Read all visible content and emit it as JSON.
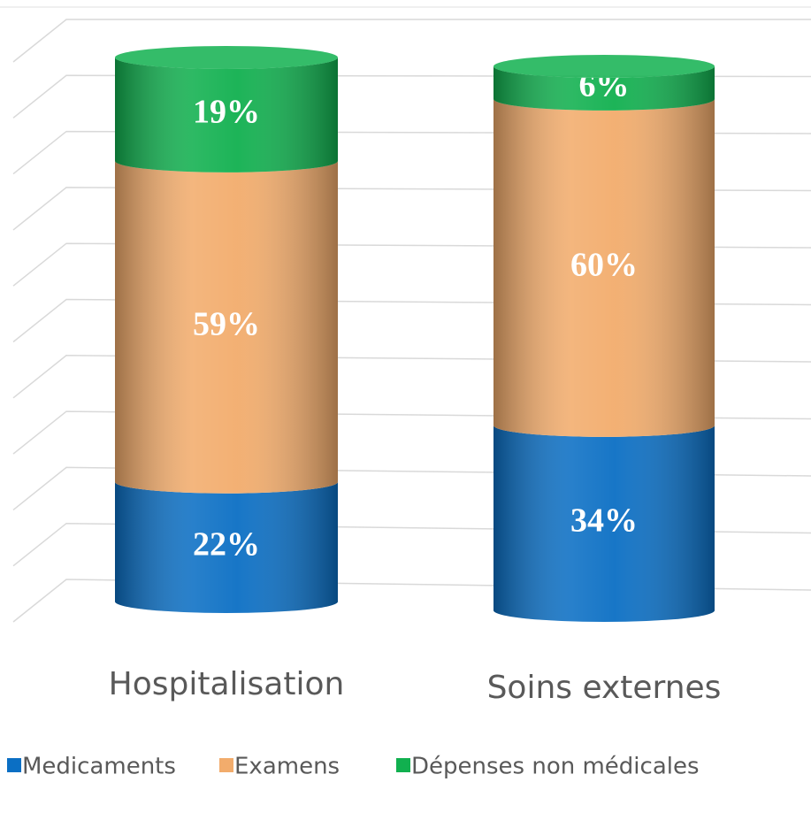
{
  "chart_data": {
    "type": "bar3d-stacked",
    "categories": [
      "Hospitalisation",
      "Soins externes"
    ],
    "series": [
      {
        "name": "Medicaments",
        "color": "#0b6fc4",
        "values": [
          22,
          34
        ],
        "value_labels": [
          "22%",
          "34%"
        ]
      },
      {
        "name": "Examens",
        "color": "#f2ac6c",
        "values": [
          59,
          60
        ],
        "value_labels": [
          "59%",
          "60%"
        ]
      },
      {
        "name": "Dépenses non médicales",
        "color": "#11b04f",
        "values": [
          19,
          6
        ],
        "value_labels": [
          "19%",
          "6%"
        ]
      }
    ],
    "ylim": [
      0,
      100
    ],
    "yticks": [
      0,
      10,
      20,
      30,
      40,
      50,
      60,
      70,
      80,
      90,
      100
    ],
    "grid": true,
    "legend": "bottom"
  }
}
